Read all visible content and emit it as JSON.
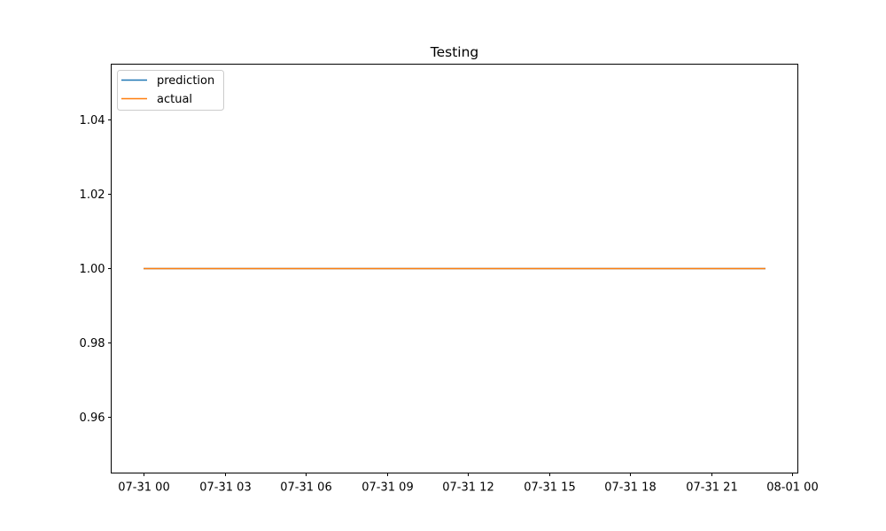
{
  "chart_data": {
    "type": "line",
    "title": "Testing",
    "xlabel": "",
    "ylabel": "",
    "x": [
      "07-31 00",
      "07-31 23"
    ],
    "x_dates": [
      "2019-07-31T00:00",
      "2019-07-31T23:00"
    ],
    "xlim": [
      "2019-07-30T22:48",
      "2019-08-01T00:12"
    ],
    "ylim": [
      0.945,
      1.055
    ],
    "x_ticks": [
      {
        "t": "2019-07-31T00:00",
        "label": "07-31 00"
      },
      {
        "t": "2019-07-31T03:00",
        "label": "07-31 03"
      },
      {
        "t": "2019-07-31T06:00",
        "label": "07-31 06"
      },
      {
        "t": "2019-07-31T09:00",
        "label": "07-31 09"
      },
      {
        "t": "2019-07-31T12:00",
        "label": "07-31 12"
      },
      {
        "t": "2019-07-31T15:00",
        "label": "07-31 15"
      },
      {
        "t": "2019-07-31T18:00",
        "label": "07-31 18"
      },
      {
        "t": "2019-07-31T21:00",
        "label": "07-31 21"
      },
      {
        "t": "2019-08-01T00:00",
        "label": "08-01 00"
      }
    ],
    "y_ticks": [
      {
        "v": 0.96,
        "label": "0.96"
      },
      {
        "v": 0.98,
        "label": "0.98"
      },
      {
        "v": 1.0,
        "label": "1.00"
      },
      {
        "v": 1.02,
        "label": "1.02"
      },
      {
        "v": 1.04,
        "label": "1.04"
      }
    ],
    "series": [
      {
        "name": "prediction",
        "color": "#1f77b4",
        "values": [
          1.0,
          1.0
        ]
      },
      {
        "name": "actual",
        "color": "#ff7f0e",
        "values": [
          1.0,
          1.0
        ]
      }
    ],
    "legend_position": "top-left",
    "grid": false
  }
}
